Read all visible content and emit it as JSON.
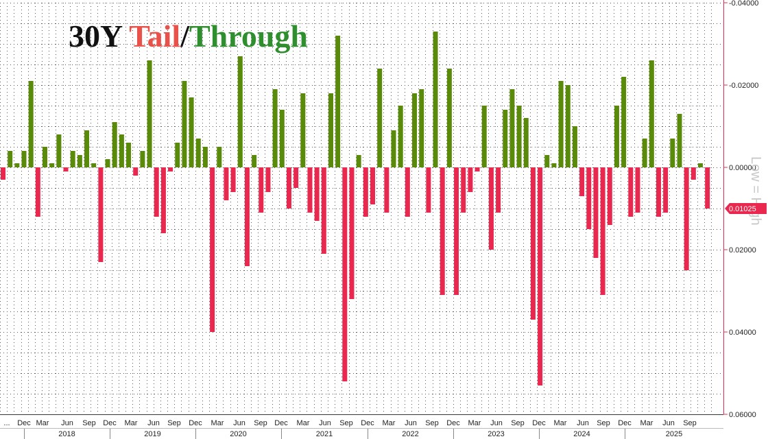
{
  "title": {
    "part1": "30Y ",
    "part2": "Tail",
    "part3": "/",
    "part4": "Through"
  },
  "colors": {
    "title_part1": "#111111",
    "title_part2": "#e8524a",
    "title_part3": "#111111",
    "title_part4": "#2f8f2f",
    "positive_bar": "#5a8a0a",
    "negative_bar": "#e8284e",
    "last_value_tag": "#e8284e"
  },
  "side_label": "Low = High",
  "last_value_label": "0.01025",
  "chart_data": {
    "type": "bar",
    "title": "30Y Tail/Through",
    "y_inverted": true,
    "ylim": [
      0.06,
      -0.04
    ],
    "y_ticks": [
      "-0.04000",
      "-0.02000",
      "0.00000",
      "0.02000",
      "0.04000",
      "0.06000"
    ],
    "y_tick_values": [
      -0.04,
      -0.02,
      0.0,
      0.02,
      0.04,
      0.06
    ],
    "x_month_ticks": [
      "...",
      "Dec",
      "Mar",
      "Jun",
      "Sep",
      "Dec",
      "Mar",
      "Jun",
      "Sep",
      "Dec",
      "Mar",
      "Jun",
      "Sep",
      "Dec",
      "Mar",
      "Jun",
      "Sep",
      "Dec",
      "Mar",
      "Jun",
      "Sep",
      "Dec",
      "Mar",
      "Jun",
      "Sep",
      "Dec",
      "Mar",
      "Jun",
      "Sep",
      "Dec",
      "Mar",
      "Jun",
      "Sep"
    ],
    "x_year_ticks": [
      "2018",
      "2019",
      "2020",
      "2021",
      "2022",
      "2023",
      "2024",
      "2025"
    ],
    "values": [
      0.003,
      -0.004,
      -0.001,
      -0.004,
      -0.021,
      0.012,
      -0.005,
      -0.001,
      -0.008,
      0.001,
      -0.004,
      -0.003,
      -0.009,
      -0.001,
      0.023,
      -0.002,
      -0.011,
      -0.008,
      -0.006,
      0.002,
      -0.004,
      -0.026,
      0.012,
      0.016,
      0.001,
      -0.006,
      -0.021,
      -0.017,
      -0.007,
      -0.005,
      0.04,
      -0.005,
      0.008,
      0.006,
      -0.027,
      0.024,
      -0.003,
      0.011,
      0.006,
      -0.019,
      -0.014,
      0.01,
      0.005,
      -0.018,
      0.011,
      0.013,
      0.021,
      -0.018,
      -0.032,
      0.052,
      0.032,
      -0.003,
      0.012,
      0.009,
      -0.024,
      0.011,
      -0.009,
      -0.015,
      0.012,
      -0.018,
      -0.019,
      0.011,
      -0.033,
      0.031,
      -0.024,
      0.031,
      0.011,
      0.006,
      0.001,
      -0.015,
      0.02,
      0.011,
      -0.014,
      -0.019,
      -0.015,
      -0.012,
      0.037,
      0.053,
      -0.003,
      -0.001,
      -0.021,
      -0.02,
      -0.01,
      0.007,
      0.015,
      0.022,
      0.031,
      0.014,
      -0.015,
      -0.022,
      0.012,
      0.011,
      -0.007,
      -0.026,
      0.012,
      0.011,
      -0.007,
      -0.013,
      0.025,
      0.003,
      -0.001,
      0.01
    ]
  }
}
